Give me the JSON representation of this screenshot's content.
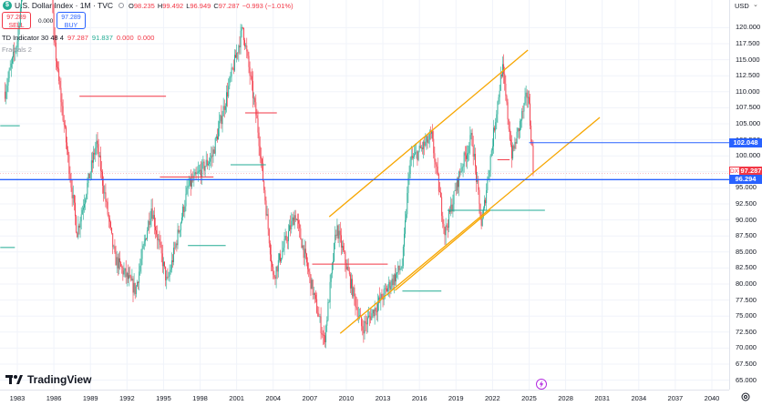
{
  "header": {
    "title": "U.S. Dollar Index · 1M · TVC",
    "logo_letter": "$",
    "ohlc": [
      {
        "k": "O",
        "v": "98.235"
      },
      {
        "k": "H",
        "v": "99.492"
      },
      {
        "k": "L",
        "v": "96.949"
      },
      {
        "k": "C",
        "v": "97.287"
      },
      {
        "k": "",
        "v": "−0.993 (−1.01%)"
      }
    ]
  },
  "trade": {
    "sell_price": "97.289",
    "sell_label": "SELL",
    "buy_price": "97.289",
    "buy_label": "BUY",
    "spread": "0.000"
  },
  "indicators": {
    "td_name": "TD Indicator 30 48 4",
    "td_values": [
      {
        "v": "97.287",
        "color": "#f23645"
      },
      {
        "v": "91.837",
        "color": "#22ab94"
      },
      {
        "v": "0.000",
        "color": "#f23645"
      },
      {
        "v": "0.000",
        "color": "#f23645"
      }
    ],
    "fractals": "Fractals 2"
  },
  "price_axis": {
    "currency": "USD",
    "ticks": [
      "120.000",
      "117.500",
      "115.000",
      "112.500",
      "110.000",
      "107.500",
      "105.000",
      "102.500",
      "100.000",
      "97.500",
      "95.000",
      "92.500",
      "90.000",
      "87.500",
      "85.000",
      "82.500",
      "80.000",
      "77.500",
      "75.000",
      "72.500",
      "70.000",
      "67.500",
      "65.000"
    ],
    "tag_upper": "102.048",
    "tag_dxy": "DXY",
    "tag_last": "97.287",
    "tag_lower": "96.294"
  },
  "time_axis": {
    "ticks": [
      "1983",
      "1986",
      "1989",
      "1992",
      "1995",
      "1998",
      "2001",
      "2004",
      "2007",
      "2010",
      "2013",
      "2016",
      "2019",
      "2022",
      "2025",
      "2028",
      "2031",
      "2034",
      "2037",
      "2040"
    ]
  },
  "branding": {
    "text": "TradingView"
  },
  "colors": {
    "up": "#22ab94",
    "down": "#f23645",
    "channel": "#f7a600",
    "hline": "#2962ff",
    "td_red": "#f23645",
    "td_green": "#22ab94"
  },
  "chart_data": {
    "type": "candlestick",
    "symbol": "DXY",
    "interval": "1M",
    "ylim": [
      64,
      123
    ],
    "xlim": [
      1981.5,
      2041.5
    ],
    "last_close": 97.287,
    "waypoints": [
      [
        1982,
        110
      ],
      [
        1983,
        118
      ],
      [
        1985.1,
        160
      ],
      [
        1986,
        118
      ],
      [
        1987.9,
        88
      ],
      [
        1989.5,
        102
      ],
      [
        1991,
        84
      ],
      [
        1992.7,
        79
      ],
      [
        1994,
        92
      ],
      [
        1995.3,
        80
      ],
      [
        1997,
        95
      ],
      [
        1999,
        100
      ],
      [
        2001.5,
        120
      ],
      [
        2002.7,
        105
      ],
      [
        2004,
        81
      ],
      [
        2005.8,
        91
      ],
      [
        2008.2,
        71
      ],
      [
        2009.2,
        89
      ],
      [
        2011.3,
        73
      ],
      [
        2014.6,
        83
      ],
      [
        2015.2,
        99
      ],
      [
        2017,
        103
      ],
      [
        2018.1,
        88
      ],
      [
        2019.4,
        98
      ],
      [
        2020.3,
        103
      ],
      [
        2021.1,
        89
      ],
      [
        2022.8,
        114
      ],
      [
        2023.6,
        100
      ],
      [
        2024.9,
        110
      ],
      [
        2025.4,
        97.3
      ]
    ],
    "channel_upper": {
      "from": [
        2008.6,
        90.5
      ],
      "to": [
        2024.9,
        116.5
      ]
    },
    "channel_lower_long": {
      "from": [
        2009.5,
        72.3
      ],
      "to": [
        2030.8,
        106
      ]
    },
    "channel_lower_short": {
      "from": [
        2014,
        79
      ],
      "to": [
        2021.8,
        91.5
      ]
    },
    "hline_upper": 102.048,
    "hline_lower": 96.294,
    "td_lines": [
      {
        "color": "#f23645",
        "y": 109.3,
        "x0": 1988.1,
        "x1": 1995.2
      },
      {
        "color": "#f23645",
        "y": 106.7,
        "x0": 2001.7,
        "x1": 2004.3
      },
      {
        "color": "#f23645",
        "y": 83.1,
        "x0": 2007.2,
        "x1": 2013.4
      },
      {
        "color": "#f23645",
        "y": 96.7,
        "x0": 1994.7,
        "x1": 1999.1
      },
      {
        "color": "#f23645",
        "y": 99.4,
        "x0": 2022.4,
        "x1": 2023.4
      },
      {
        "color": "#22ab94",
        "y": 104.7,
        "x0": 1981.6,
        "x1": 1983.2
      },
      {
        "color": "#22ab94",
        "y": 85.7,
        "x0": 1981.6,
        "x1": 1982.8
      },
      {
        "color": "#22ab94",
        "y": 86.0,
        "x0": 1997.0,
        "x1": 2000.1
      },
      {
        "color": "#22ab94",
        "y": 98.6,
        "x0": 2000.5,
        "x1": 2003.4
      },
      {
        "color": "#22ab94",
        "y": 78.9,
        "x0": 2014.6,
        "x1": 2017.8
      },
      {
        "color": "#22ab94",
        "y": 91.5,
        "x0": 2018.3,
        "x1": 2026.3
      }
    ]
  }
}
